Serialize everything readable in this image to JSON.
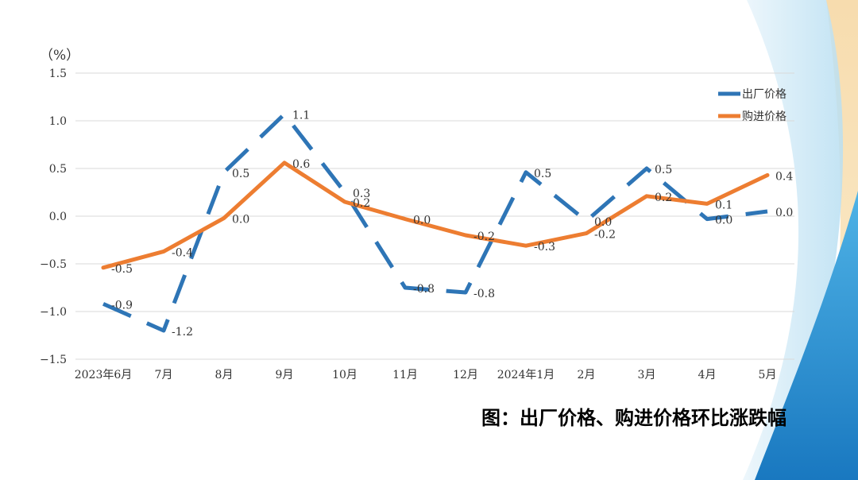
{
  "caption": "图：出厂价格、购进价格环比涨跌幅",
  "chart_data": {
    "type": "line",
    "title": "图：出厂价格、购进价格环比涨跌幅",
    "ylabel": "（%）",
    "xlabel": "",
    "categories": [
      "2023年6月",
      "7月",
      "8月",
      "9月",
      "10月",
      "11月",
      "12月",
      "2024年1月",
      "2月",
      "3月",
      "4月",
      "5月"
    ],
    "ylim": [
      -1.5,
      1.5
    ],
    "yticks": [
      "1.5",
      "1.0",
      "0.5",
      "0.0",
      "−0.5",
      "−1.0",
      "−1.5"
    ],
    "ytick_values": [
      1.5,
      1.0,
      0.5,
      0.0,
      -0.5,
      -1.0,
      -1.5
    ],
    "grid": true,
    "legend_position": "top-right",
    "series": [
      {
        "name": "出厂价格",
        "color": "#2e75b6",
        "style": "dashed",
        "values": [
          -0.92,
          -1.2,
          0.46,
          1.07,
          0.25,
          -0.75,
          -0.8,
          0.46,
          -0.05,
          0.5,
          -0.03,
          0.05
        ],
        "labels": [
          "-0.9",
          "-1.2",
          "0.5",
          "1.1",
          "0.3",
          "-0.8",
          "-0.8",
          "0.5",
          "0.0",
          "0.5",
          "0.0",
          "0.0"
        ]
      },
      {
        "name": "购进价格",
        "color": "#ed7d31",
        "style": "solid",
        "values": [
          -0.54,
          -0.37,
          -0.02,
          0.56,
          0.15,
          -0.03,
          -0.2,
          -0.31,
          -0.18,
          0.21,
          0.13,
          0.43
        ],
        "labels": [
          "-0.5",
          "-0.4",
          "0.0",
          "0.6",
          "0.2",
          "0.0",
          "-0.2",
          "-0.3",
          "-0.2",
          "0.2",
          "0.1",
          "0.4"
        ]
      }
    ]
  }
}
